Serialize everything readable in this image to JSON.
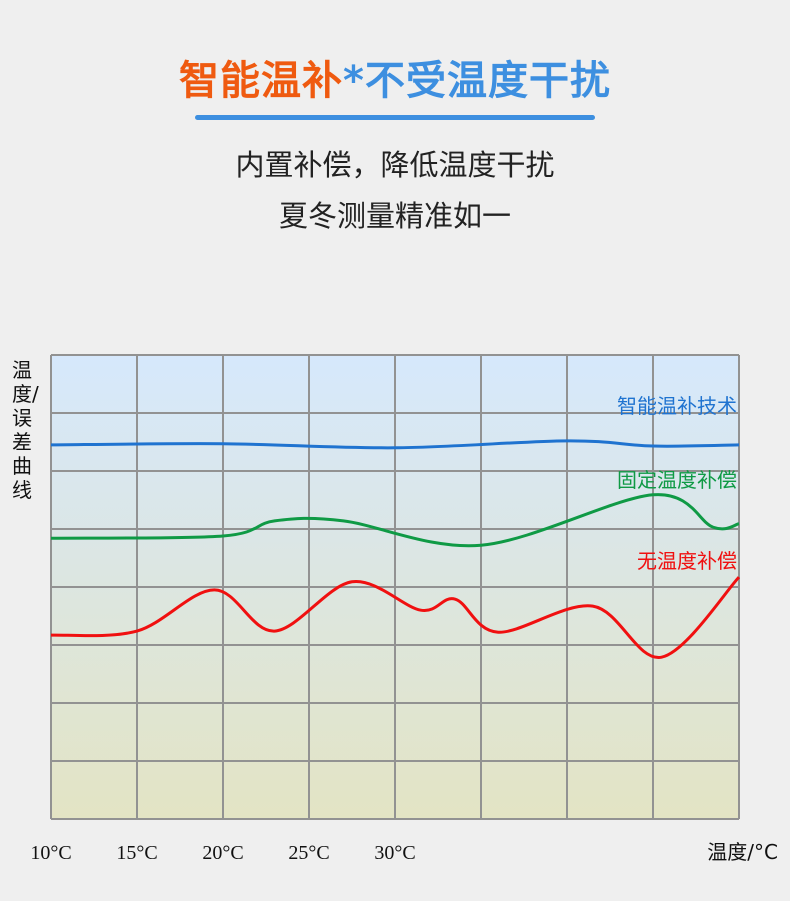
{
  "header": {
    "title_part1": "智能温补",
    "title_star": "*",
    "title_part2": "不受温度干扰",
    "line1": "内置补偿，降低温度干扰",
    "line2": "夏冬测量精准如一"
  },
  "chart_data": {
    "type": "line",
    "ylabel": "温度/误差曲线",
    "xlabel": "温度/°C",
    "x_tick_labels": [
      "10°C",
      "15°C",
      "20°C",
      "25°C",
      "30°C"
    ],
    "x_ticks": [
      10,
      15,
      20,
      25,
      30
    ],
    "xlim": [
      10,
      50
    ],
    "ylim": [
      0,
      8
    ],
    "grid": true,
    "series": [
      {
        "name": "智能温补技术",
        "color": "#1f73d0",
        "x": [
          10,
          20,
          30,
          40,
          45,
          50
        ],
        "y": [
          6.45,
          6.47,
          6.4,
          6.52,
          6.43,
          6.45
        ]
      },
      {
        "name": "固定温度补偿",
        "color": "#0f9a45",
        "x": [
          10,
          20,
          23,
          27,
          35,
          45,
          48.5,
          50
        ],
        "y": [
          4.84,
          4.88,
          5.14,
          5.14,
          4.72,
          5.59,
          5.03,
          5.09
        ]
      },
      {
        "name": "无温度补偿",
        "color": "#f01010",
        "x": [
          10,
          15,
          19.5,
          23,
          27.5,
          31.5,
          33.5,
          36,
          41.5,
          45.5,
          50
        ],
        "y": [
          3.17,
          3.24,
          3.95,
          3.24,
          4.09,
          3.6,
          3.79,
          3.22,
          3.67,
          2.79,
          4.17
        ]
      }
    ]
  }
}
